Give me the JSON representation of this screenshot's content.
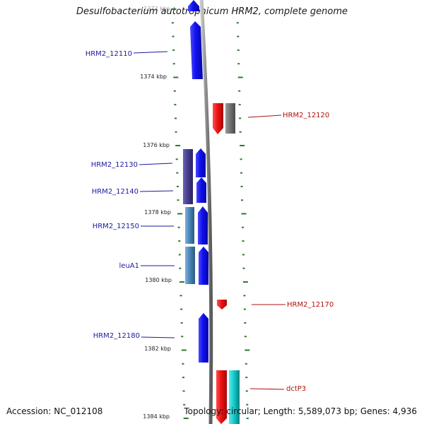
{
  "title": "Desulfobacterium autotrophicum HRM2, complete genome",
  "footer": {
    "accession": "Accession: NC_012108",
    "stats": "Topology: circular; Length: 5,589,073 bp; Genes: 4,936"
  },
  "colors": {
    "forward_gene": "#1010ee",
    "reverse_gene": "#ee1111",
    "backbone": "#888888",
    "tick": "#2a7a2a",
    "forward_label": "#1a1aa0",
    "reverse_label": "#b01010"
  },
  "ticks": [
    {
      "label": "1372 kbp"
    },
    {
      "label": "1374 kbp"
    },
    {
      "label": "1376 kbp"
    },
    {
      "label": "1378 kbp"
    },
    {
      "label": "1380 kbp"
    },
    {
      "label": "1382 kbp"
    },
    {
      "label": "1384 kbp"
    }
  ],
  "genes": [
    {
      "name": "HRM2_12110",
      "strand": "forward"
    },
    {
      "name": "HRM2_12120",
      "strand": "reverse"
    },
    {
      "name": "HRM2_12130",
      "strand": "forward"
    },
    {
      "name": "HRM2_12140",
      "strand": "forward"
    },
    {
      "name": "HRM2_12150",
      "strand": "forward"
    },
    {
      "name": "leuA1",
      "strand": "forward"
    },
    {
      "name": "HRM2_12170",
      "strand": "reverse"
    },
    {
      "name": "HRM2_12180",
      "strand": "forward"
    },
    {
      "name": "dctP3",
      "strand": "reverse"
    }
  ]
}
